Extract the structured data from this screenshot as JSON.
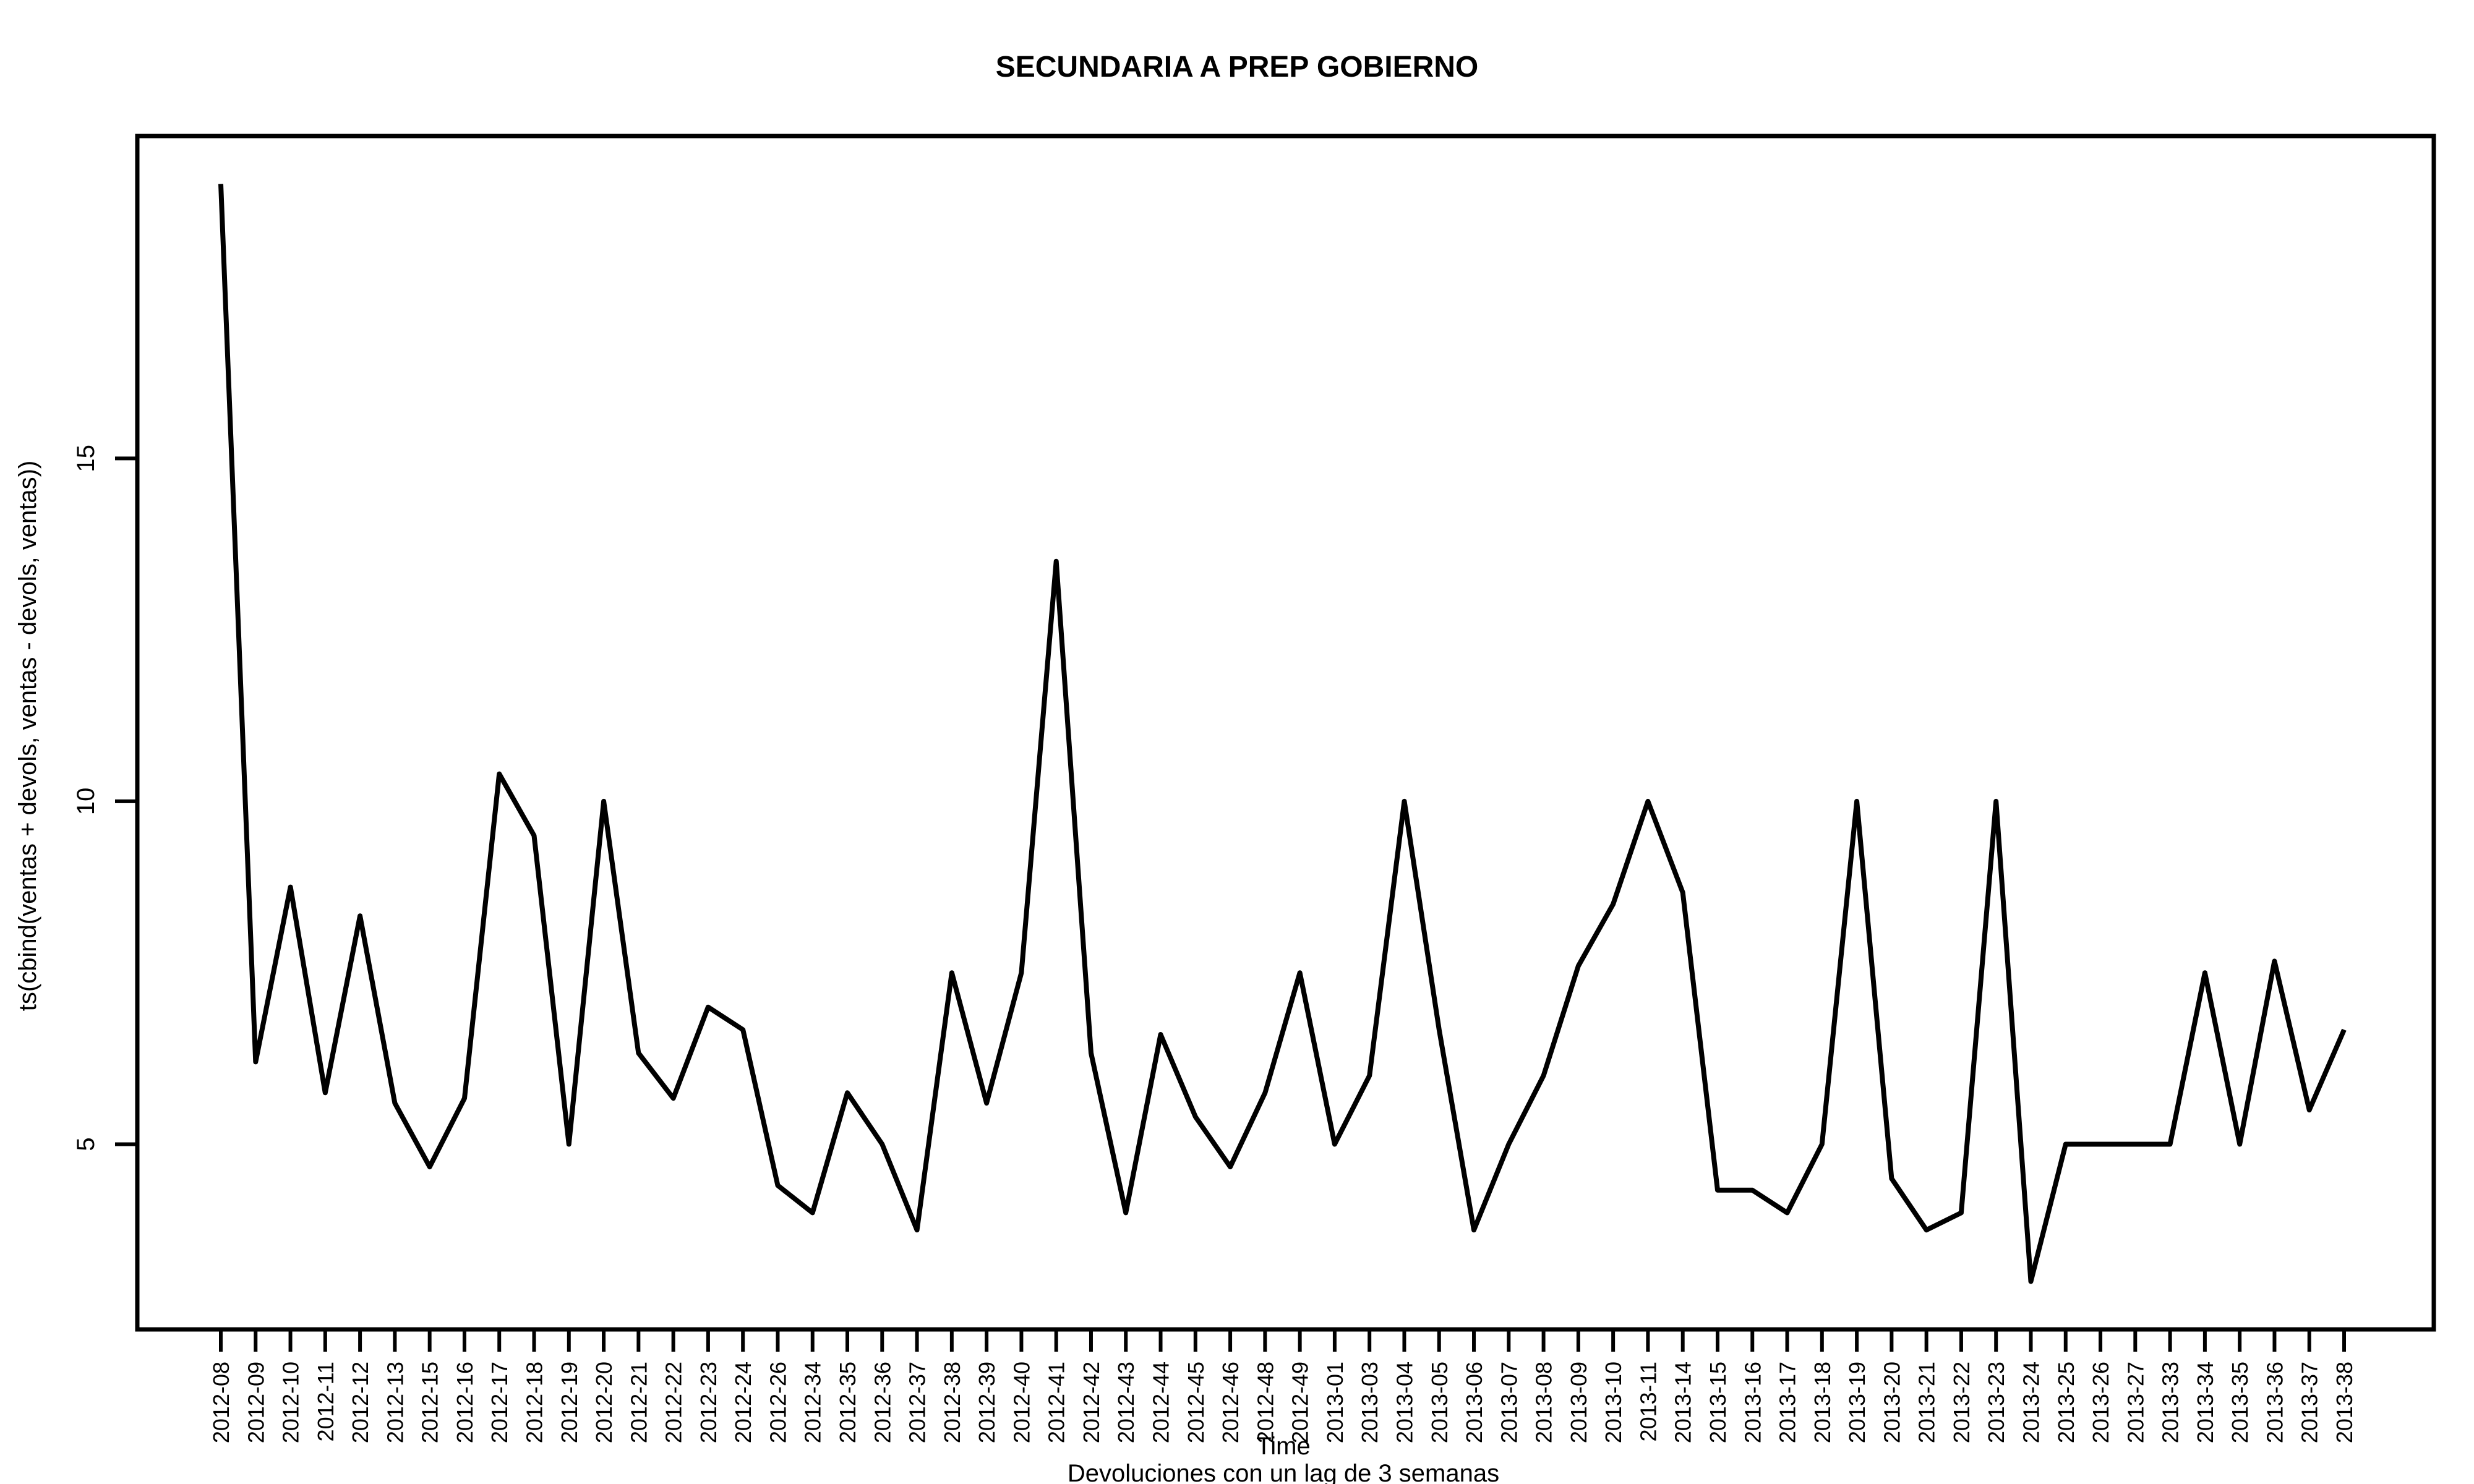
{
  "chart_data": {
    "type": "line",
    "title": "SECUNDARIA A PREP GOBIERNO",
    "xlabel": "Time",
    "subtitle": "Devoluciones con un lag de 3 semanas",
    "ylabel": "ts(cbind(ventas + devols, ventas - devols, ventas))",
    "x": [
      "2012-08",
      "2012-09",
      "2012-10",
      "2012-11",
      "2012-12",
      "2012-13",
      "2012-15",
      "2012-16",
      "2012-17",
      "2012-18",
      "2012-19",
      "2012-20",
      "2012-21",
      "2012-22",
      "2012-23",
      "2012-24",
      "2012-26",
      "2012-34",
      "2012-35",
      "2012-36",
      "2012-37",
      "2012-38",
      "2012-39",
      "2012-40",
      "2012-41",
      "2012-42",
      "2012-43",
      "2012-44",
      "2012-45",
      "2012-46",
      "2012-48",
      "2012-49",
      "2013-01",
      "2013-03",
      "2013-04",
      "2013-05",
      "2013-06",
      "2013-07",
      "2013-08",
      "2013-09",
      "2013-10",
      "2013-11",
      "2013-14",
      "2013-15",
      "2013-16",
      "2013-17",
      "2013-18",
      "2013-19",
      "2013-20",
      "2013-21",
      "2013-22",
      "2013-23",
      "2013-24",
      "2013-25",
      "2013-26",
      "2013-27",
      "2013-33",
      "2013-34",
      "2013-35",
      "2013-36",
      "2013-37",
      "2013-38"
    ],
    "values": [
      19,
      6.2,
      8.75,
      5.75,
      8.33,
      5.6,
      4.67,
      5.67,
      10.4,
      9.5,
      5,
      10,
      6.33,
      5.67,
      7,
      6.67,
      4.4,
      4,
      5.75,
      5,
      3.75,
      7.5,
      5.6,
      7.5,
      13.5,
      6.33,
      4,
      6.6,
      5.4,
      4.67,
      5.75,
      7.5,
      5,
      6,
      10,
      6.67,
      3.75,
      5,
      6,
      7.6,
      8.5,
      10,
      8.67,
      4.33,
      4.33,
      4,
      5,
      10,
      4.5,
      3.75,
      4,
      10,
      3,
      5,
      5,
      5,
      5,
      7.5,
      5,
      7.67,
      5.5,
      6.67
    ],
    "yticks": [
      5,
      10,
      15
    ],
    "ylim": [
      2.3,
      19.7
    ],
    "color": "#000000",
    "grid": false,
    "legend": "none"
  }
}
